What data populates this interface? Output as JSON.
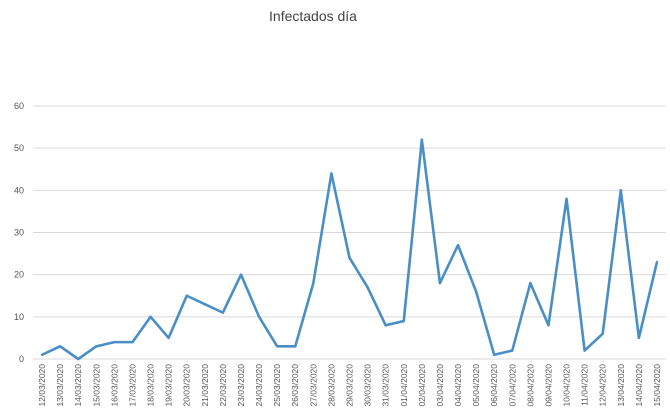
{
  "chart_data": {
    "type": "line",
    "title": "Infectados día",
    "xlabel": "",
    "ylabel": "",
    "ylim": [
      0,
      60
    ],
    "yticks": [
      0,
      10,
      20,
      30,
      40,
      50,
      60
    ],
    "grid": true,
    "legend": "none",
    "x": [
      "12/03/2020",
      "13/03/2020",
      "14/03/2020",
      "15/03/2020",
      "16/03/2020",
      "17/03/2020",
      "18/03/2020",
      "19/03/2020",
      "20/03/2020",
      "21/03/2020",
      "22/03/2020",
      "23/03/2020",
      "24/03/2020",
      "25/03/2020",
      "26/03/2020",
      "27/03/2020",
      "28/03/2020",
      "29/03/2020",
      "30/03/2020",
      "31/03/2020",
      "01/04/2020",
      "02/04/2020",
      "03/04/2020",
      "04/04/2020",
      "05/04/2020",
      "06/04/2020",
      "07/04/2020",
      "08/04/2020",
      "09/04/2020",
      "10/04/2020",
      "11/04/2020",
      "12/04/2020",
      "13/04/2020",
      "14/04/2020",
      "15/04/2020"
    ],
    "series": [
      {
        "color": "#4a8ec6",
        "values": [
          1,
          3,
          0,
          3,
          4,
          4,
          10,
          5,
          15,
          13,
          11,
          20,
          10,
          3,
          3,
          18,
          44,
          24,
          17,
          8,
          9,
          52,
          18,
          27,
          16,
          1,
          2,
          18,
          8,
          38,
          2,
          6,
          40,
          5,
          23
        ]
      }
    ],
    "colors": {
      "grid": "#d9d9d9",
      "line": "#4a8ec6"
    }
  }
}
